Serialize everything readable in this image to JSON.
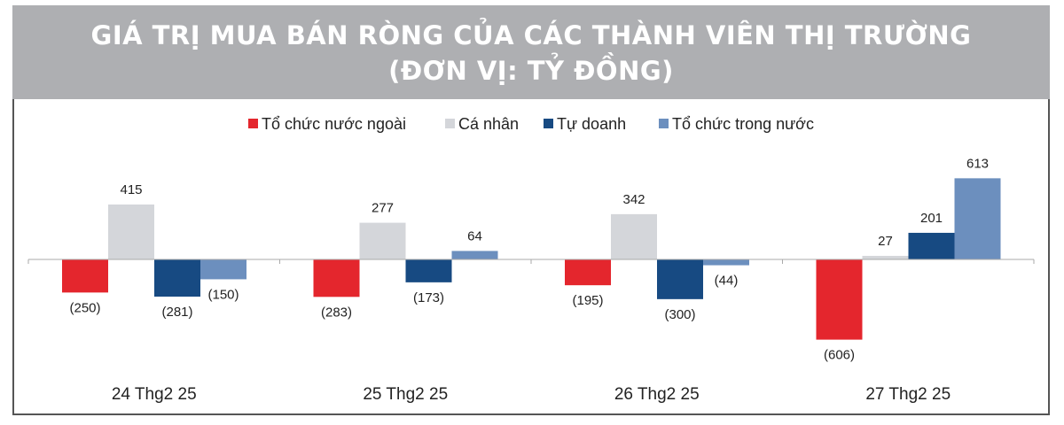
{
  "header": {
    "line1": "GIÁ TRỊ MUA BÁN RÒNG CỦA CÁC THÀNH VIÊN THỊ TRƯỜNG",
    "line2": "(ĐƠN VỊ: TỶ ĐỒNG)"
  },
  "chart_data": {
    "type": "bar",
    "title": "GIÁ TRỊ MUA BÁN RÒNG CỦA CÁC THÀNH VIÊN THỊ TRƯỜNG (ĐƠN VỊ: TỶ ĐỒNG)",
    "categories": [
      "24 Thg2 25",
      "25 Thg2 25",
      "26 Thg2 25",
      "27 Thg2 25"
    ],
    "series": [
      {
        "name": "Tổ chức nước ngoài",
        "color": "#e4262d",
        "values": [
          -250,
          -283,
          -195,
          -606
        ],
        "labels": [
          "(250)",
          "(283)",
          "(195)",
          "(606)"
        ]
      },
      {
        "name": "Cá nhân",
        "color": "#d4d6da",
        "values": [
          415,
          277,
          342,
          27
        ],
        "labels": [
          "415",
          "277",
          "342",
          "27"
        ]
      },
      {
        "name": "Tự doanh",
        "color": "#174a82",
        "values": [
          -281,
          -173,
          -300,
          201
        ],
        "labels": [
          "(281)",
          "(173)",
          "(300)",
          "201"
        ]
      },
      {
        "name": "Tổ chức trong nước",
        "color": "#6c8fbe",
        "values": [
          -150,
          64,
          -44,
          613
        ],
        "labels": [
          "(150)",
          "64",
          "(44)",
          "613"
        ]
      }
    ],
    "legend_position": "top",
    "grid": false,
    "xlabel": "",
    "ylabel": ""
  }
}
